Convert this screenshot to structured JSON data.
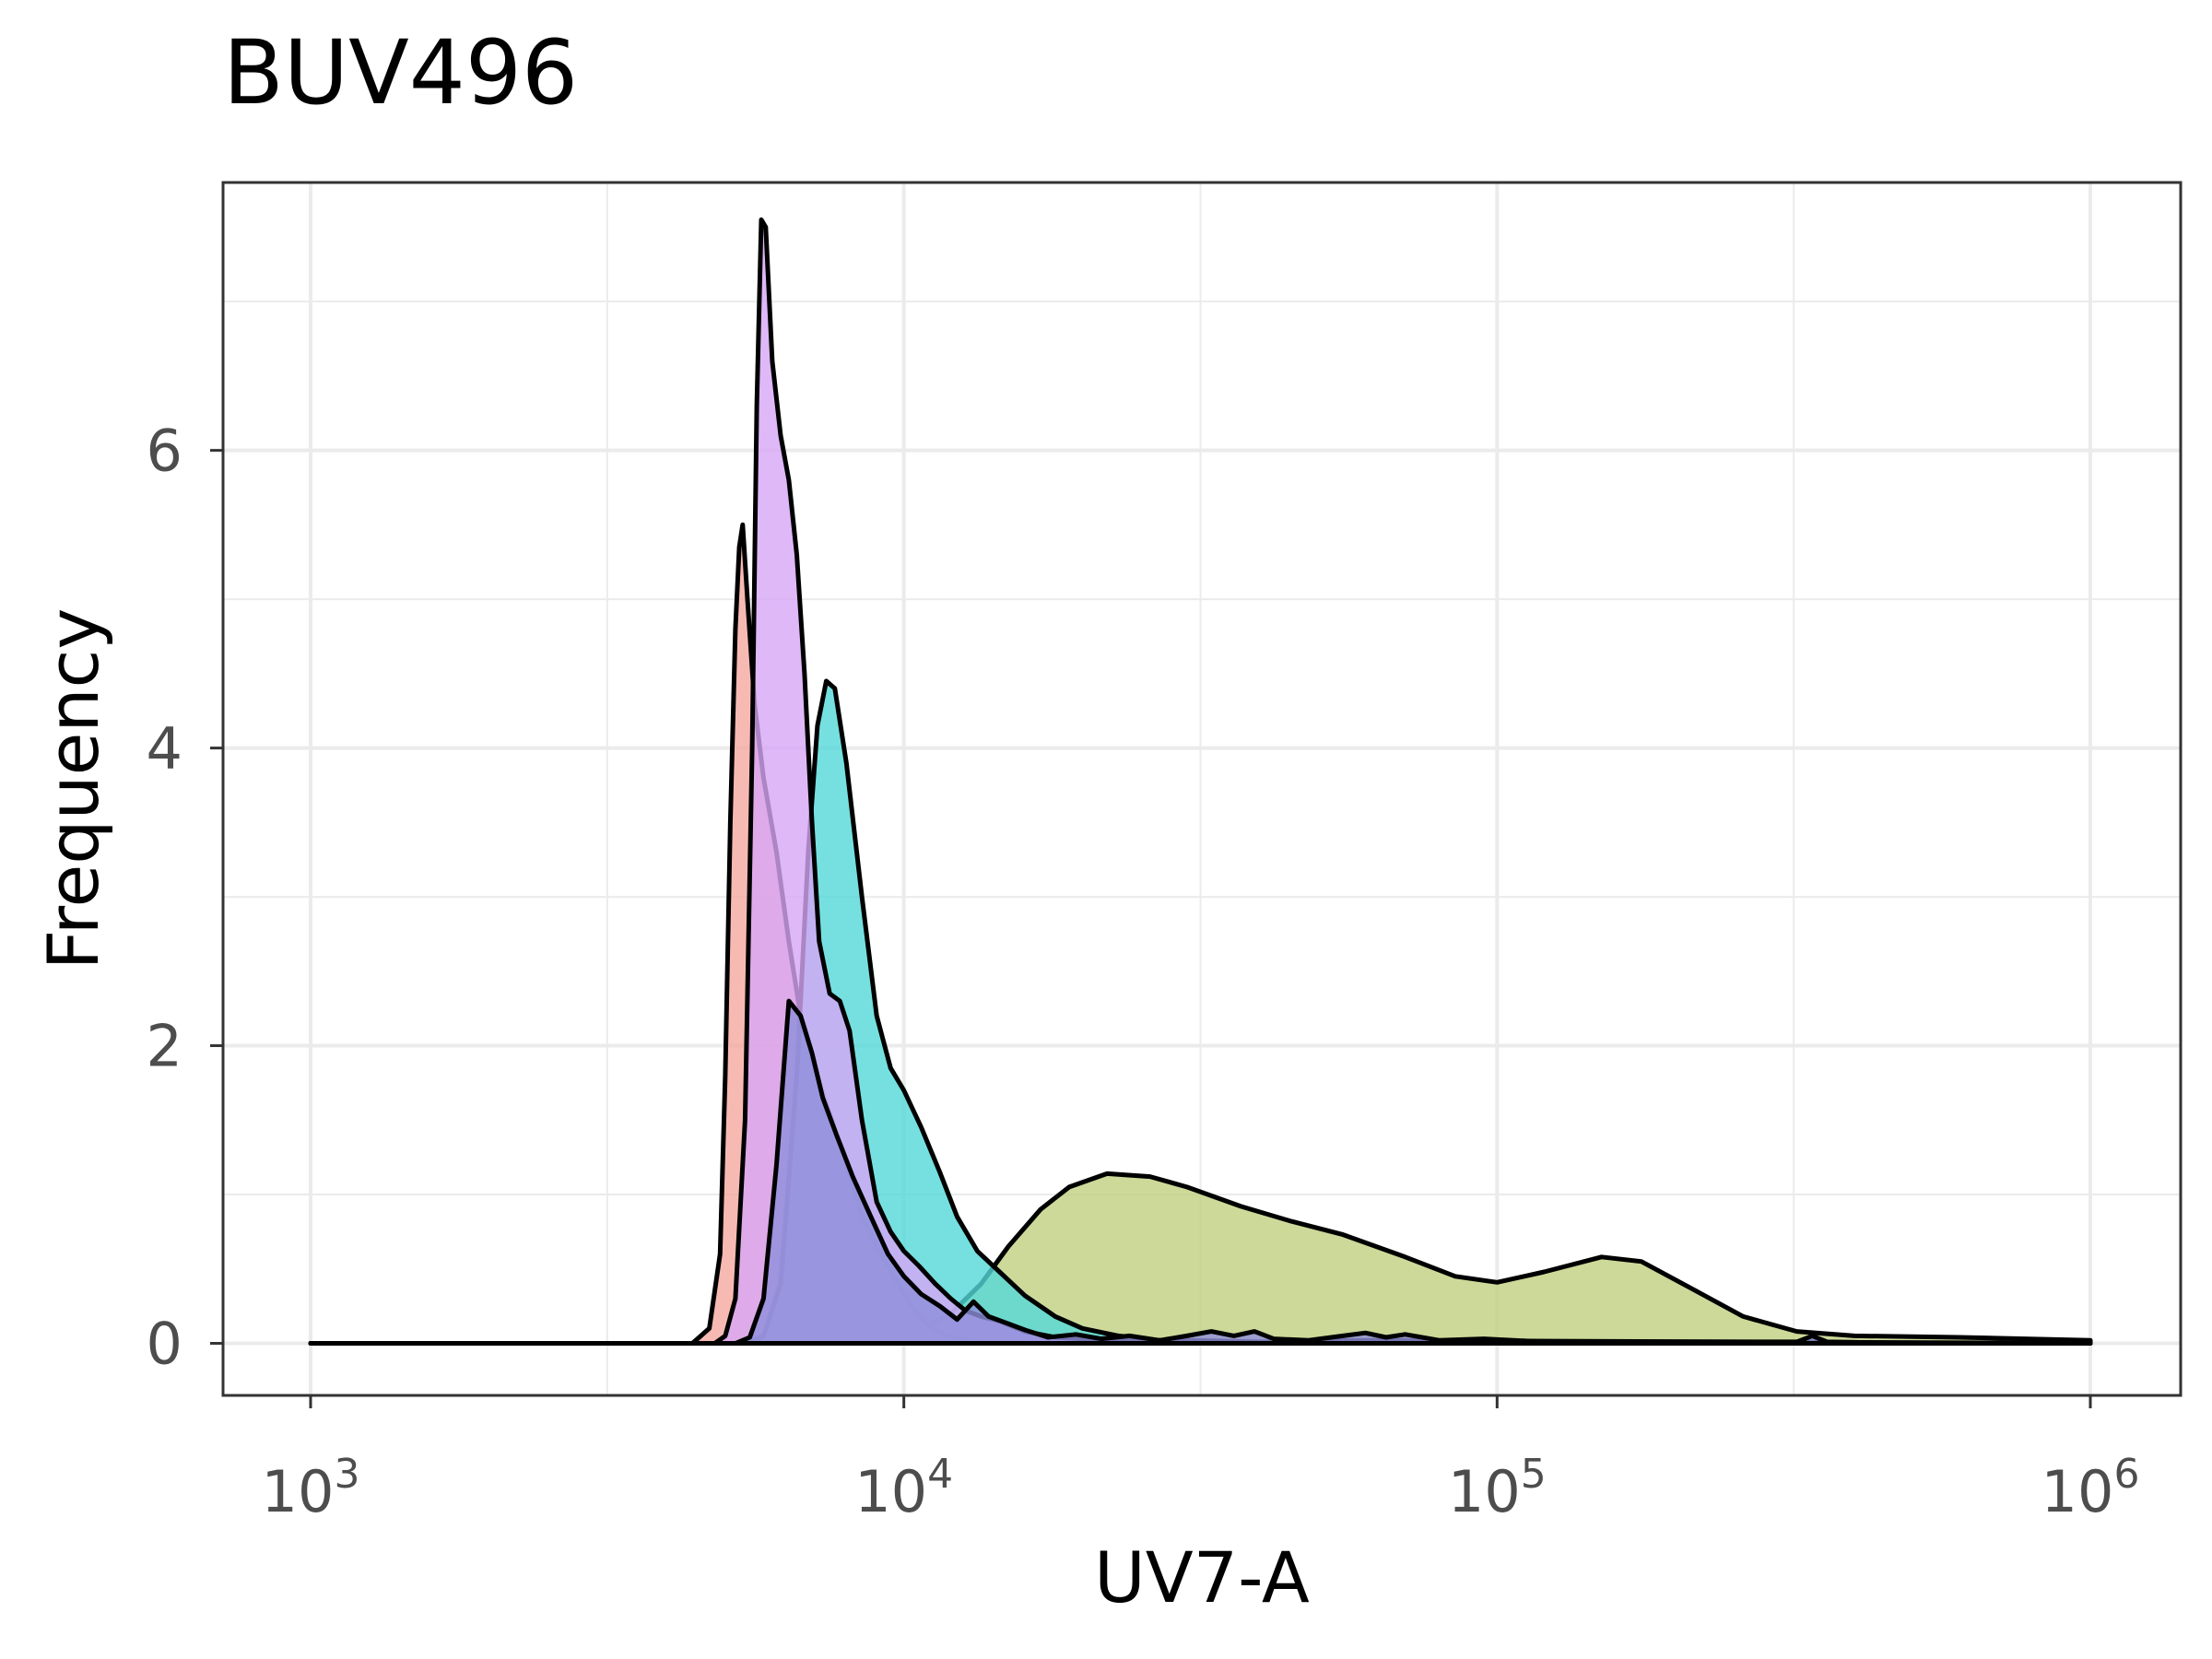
{
  "chart_data": {
    "type": "area",
    "title": "BUV496",
    "xlabel": "UV7-A",
    "ylabel": "Frequency",
    "xscale": "log10",
    "xlim": [
      1000,
      1000000
    ],
    "ylim": [
      -0.35,
      7.8
    ],
    "grid": true,
    "legend": "none",
    "x_ticks": [
      {
        "value": 1000,
        "base": "10",
        "exp": "3"
      },
      {
        "value": 10000,
        "base": "10",
        "exp": "4"
      },
      {
        "value": 100000,
        "base": "10",
        "exp": "5"
      },
      {
        "value": 1000000,
        "base": "10",
        "exp": "6"
      }
    ],
    "y_ticks": [
      {
        "value": 0,
        "label": "0"
      },
      {
        "value": 2,
        "label": "2"
      },
      {
        "value": 4,
        "label": "4"
      },
      {
        "value": 6,
        "label": "6"
      }
    ],
    "series": [
      {
        "color": "#bfd07f",
        "points": [
          [
            1000,
            0
          ],
          [
            5000,
            0
          ],
          [
            7000,
            0.005
          ],
          [
            9000,
            0.03
          ],
          [
            10500,
            0.08
          ],
          [
            12000,
            0.2
          ],
          [
            13500,
            0.4
          ],
          [
            15000,
            0.65
          ],
          [
            17000,
            0.9
          ],
          [
            19000,
            1.05
          ],
          [
            22000,
            1.14
          ],
          [
            26000,
            1.12
          ],
          [
            30000,
            1.05
          ],
          [
            37000,
            0.92
          ],
          [
            45000,
            0.82
          ],
          [
            55000,
            0.73
          ],
          [
            70000,
            0.58
          ],
          [
            85000,
            0.45
          ],
          [
            100000,
            0.41
          ],
          [
            120000,
            0.48
          ],
          [
            150000,
            0.58
          ],
          [
            175000,
            0.55
          ],
          [
            210000,
            0.38
          ],
          [
            260000,
            0.18
          ],
          [
            320000,
            0.08
          ],
          [
            400000,
            0.05
          ],
          [
            600000,
            0.04
          ],
          [
            1000000,
            0.02
          ]
        ]
      },
      {
        "color": "#f5a9a0",
        "points": [
          [
            1000,
            0
          ],
          [
            4400,
            0
          ],
          [
            4700,
            0.1
          ],
          [
            4900,
            0.6
          ],
          [
            5000,
            1.8
          ],
          [
            5100,
            3.5
          ],
          [
            5200,
            4.8
          ],
          [
            5280,
            5.35
          ],
          [
            5350,
            5.5
          ],
          [
            5450,
            5.0
          ],
          [
            5600,
            4.3
          ],
          [
            5800,
            3.8
          ],
          [
            6100,
            3.3
          ],
          [
            6400,
            2.7
          ],
          [
            6700,
            2.2
          ],
          [
            7000,
            1.9
          ],
          [
            7500,
            1.55
          ],
          [
            8000,
            1.2
          ],
          [
            8500,
            0.85
          ],
          [
            9000,
            0.65
          ],
          [
            9600,
            0.45
          ],
          [
            10300,
            0.25
          ],
          [
            11000,
            0.12
          ],
          [
            11800,
            0.05
          ],
          [
            13000,
            0.01
          ],
          [
            15000,
            0
          ],
          [
            1000000,
            0
          ]
        ]
      },
      {
        "color": "#54d8d8",
        "points": [
          [
            1000,
            0
          ],
          [
            5400,
            0
          ],
          [
            5800,
            0.05
          ],
          [
            6200,
            0.4
          ],
          [
            6600,
            1.8
          ],
          [
            6900,
            3.3
          ],
          [
            7150,
            4.15
          ],
          [
            7400,
            4.45
          ],
          [
            7650,
            4.4
          ],
          [
            8000,
            3.9
          ],
          [
            8500,
            3.0
          ],
          [
            9000,
            2.2
          ],
          [
            9500,
            1.85
          ],
          [
            10000,
            1.7
          ],
          [
            10700,
            1.45
          ],
          [
            11500,
            1.15
          ],
          [
            12300,
            0.85
          ],
          [
            13300,
            0.62
          ],
          [
            14500,
            0.48
          ],
          [
            16000,
            0.32
          ],
          [
            18000,
            0.18
          ],
          [
            20000,
            0.1
          ],
          [
            23000,
            0.05
          ],
          [
            27000,
            0.02
          ],
          [
            35000,
            0
          ],
          [
            1000000,
            0
          ]
        ]
      },
      {
        "color": "#d7a6f6",
        "points": [
          [
            1000,
            0
          ],
          [
            4800,
            0
          ],
          [
            5000,
            0.05
          ],
          [
            5200,
            0.3
          ],
          [
            5400,
            1.5
          ],
          [
            5550,
            4.0
          ],
          [
            5650,
            6.3
          ],
          [
            5750,
            7.55
          ],
          [
            5850,
            7.5
          ],
          [
            6000,
            6.6
          ],
          [
            6200,
            6.1
          ],
          [
            6400,
            5.8
          ],
          [
            6600,
            5.3
          ],
          [
            6800,
            4.5
          ],
          [
            7000,
            3.5
          ],
          [
            7200,
            2.7
          ],
          [
            7500,
            2.35
          ],
          [
            7800,
            2.3
          ],
          [
            8100,
            2.1
          ],
          [
            8500,
            1.5
          ],
          [
            9000,
            0.95
          ],
          [
            9500,
            0.75
          ],
          [
            10000,
            0.62
          ],
          [
            10600,
            0.52
          ],
          [
            11300,
            0.4
          ],
          [
            12000,
            0.3
          ],
          [
            12700,
            0.22
          ],
          [
            13500,
            0.18
          ],
          [
            14500,
            0.15
          ],
          [
            16000,
            0.08
          ],
          [
            18000,
            0.04
          ],
          [
            22000,
            0.02
          ],
          [
            30000,
            0.02
          ],
          [
            40000,
            0.01
          ],
          [
            60000,
            0.02
          ],
          [
            1000000,
            0
          ]
        ]
      },
      {
        "color": "#8f8edb",
        "points": [
          [
            1000,
            0
          ],
          [
            5200,
            0
          ],
          [
            5500,
            0.04
          ],
          [
            5800,
            0.3
          ],
          [
            6100,
            1.2
          ],
          [
            6400,
            2.3
          ],
          [
            6700,
            2.2
          ],
          [
            7000,
            1.95
          ],
          [
            7300,
            1.65
          ],
          [
            7700,
            1.4
          ],
          [
            8200,
            1.12
          ],
          [
            8800,
            0.85
          ],
          [
            9400,
            0.6
          ],
          [
            10000,
            0.45
          ],
          [
            10700,
            0.33
          ],
          [
            11500,
            0.25
          ],
          [
            12300,
            0.16
          ],
          [
            13100,
            0.28
          ],
          [
            13900,
            0.18
          ],
          [
            14800,
            0.14
          ],
          [
            16000,
            0.09
          ],
          [
            17500,
            0.04
          ],
          [
            19500,
            0.06
          ],
          [
            21500,
            0.03
          ],
          [
            24000,
            0.05
          ],
          [
            27000,
            0.02
          ],
          [
            30000,
            0.05
          ],
          [
            33000,
            0.08
          ],
          [
            36000,
            0.05
          ],
          [
            39000,
            0.08
          ],
          [
            42000,
            0.03
          ],
          [
            48000,
            0.02
          ],
          [
            55000,
            0.05
          ],
          [
            60000,
            0.07
          ],
          [
            65000,
            0.04
          ],
          [
            70000,
            0.06
          ],
          [
            80000,
            0.02
          ],
          [
            95000,
            0.03
          ],
          [
            120000,
            0.01
          ],
          [
            200000,
            0.01
          ],
          [
            320000,
            0.01
          ],
          [
            340000,
            0.05
          ],
          [
            360000,
            0.01
          ],
          [
            500000,
            0
          ],
          [
            1000000,
            0
          ]
        ]
      }
    ]
  }
}
